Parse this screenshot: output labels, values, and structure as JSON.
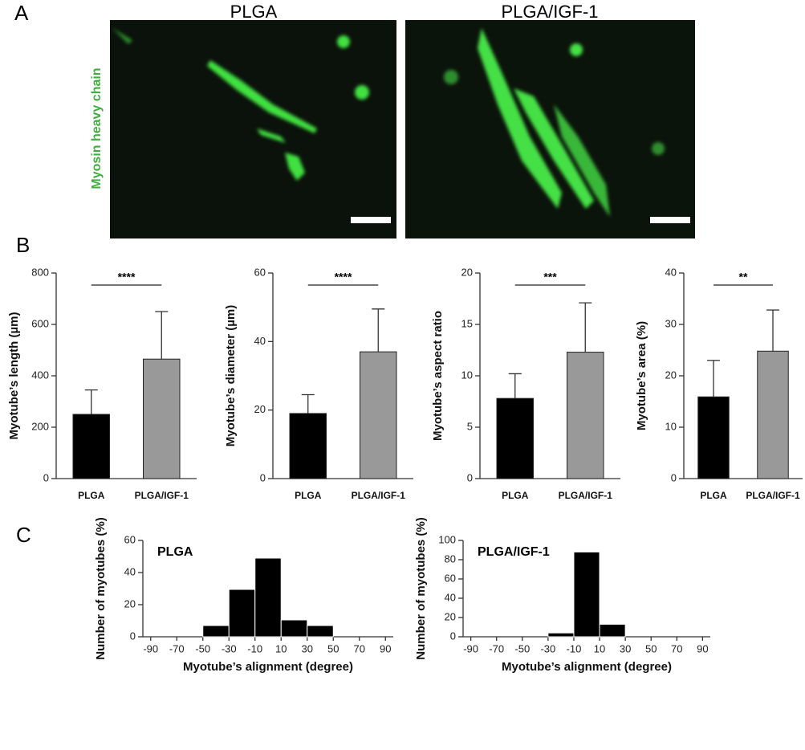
{
  "panel_labels": [
    "A",
    "B",
    "C"
  ],
  "images": {
    "titles": [
      "PLGA",
      "PLGA/IGF-1"
    ],
    "stain_label": "Myosin heavy chain"
  },
  "chart_data": [
    {
      "type": "bar",
      "ylabel": "Myotube’s length (µm)",
      "categories": [
        "PLGA",
        "PLGA/IGF-1"
      ],
      "values": [
        250,
        465
      ],
      "errors": [
        95,
        185
      ],
      "colors": [
        "#000000",
        "#999999"
      ],
      "ylim": [
        0,
        800
      ],
      "yticks": [
        0,
        200,
        400,
        600,
        800
      ],
      "significance": "****"
    },
    {
      "type": "bar",
      "ylabel": "Myotube’s diameter (µm)",
      "categories": [
        "PLGA",
        "PLGA/IGF-1"
      ],
      "values": [
        19,
        37
      ],
      "errors": [
        5.5,
        12.5
      ],
      "colors": [
        "#000000",
        "#999999"
      ],
      "ylim": [
        0,
        60
      ],
      "yticks": [
        0,
        20,
        40,
        60
      ],
      "significance": "****"
    },
    {
      "type": "bar",
      "ylabel": "Myotube’s aspect ratio",
      "categories": [
        "PLGA",
        "PLGA/IGF-1"
      ],
      "values": [
        7.8,
        12.3
      ],
      "errors": [
        2.4,
        4.8
      ],
      "colors": [
        "#000000",
        "#999999"
      ],
      "ylim": [
        0,
        20
      ],
      "yticks": [
        0,
        5,
        10,
        15,
        20
      ],
      "significance": "***"
    },
    {
      "type": "bar",
      "ylabel": "Myotube’s area (%)",
      "categories": [
        "PLGA",
        "PLGA/IGF-1"
      ],
      "values": [
        15.9,
        24.8
      ],
      "errors": [
        7.1,
        8
      ],
      "colors": [
        "#000000",
        "#999999"
      ],
      "ylim": [
        0,
        40
      ],
      "yticks": [
        0,
        10,
        20,
        30,
        40
      ],
      "significance": "**"
    },
    {
      "type": "histogram",
      "title": "PLGA",
      "xlabel": "Myotube’s alignment (degree)",
      "ylabel": "Number of myotubes (%)",
      "bins": [
        -90,
        -70,
        -50,
        -30,
        -10,
        10,
        30,
        50,
        70,
        90
      ],
      "counts": [
        0,
        0,
        7,
        29.5,
        49,
        10.5,
        7,
        0,
        0
      ],
      "color": "#000000",
      "xlim": [
        -96,
        96
      ],
      "xticks": [
        -90,
        -70,
        -50,
        -30,
        -10,
        10,
        30,
        50,
        70,
        90
      ],
      "ylim": [
        0,
        60
      ],
      "yticks": [
        0,
        20,
        40,
        60
      ]
    },
    {
      "type": "histogram",
      "title": "PLGA/IGF-1",
      "xlabel": "Myotube’s alignment (degree)",
      "ylabel": "Number of myotubes (%)",
      "bins": [
        -90,
        -70,
        -50,
        -30,
        -10,
        10,
        30,
        50,
        70,
        90
      ],
      "counts": [
        0,
        0,
        0,
        4,
        88,
        13,
        0,
        0,
        0
      ],
      "color": "#000000",
      "xlim": [
        -96,
        96
      ],
      "xticks": [
        -90,
        -70,
        -50,
        -30,
        -10,
        10,
        30,
        50,
        70,
        90
      ],
      "ylim": [
        0,
        100
      ],
      "yticks": [
        0,
        20,
        40,
        60,
        80,
        100
      ]
    }
  ]
}
